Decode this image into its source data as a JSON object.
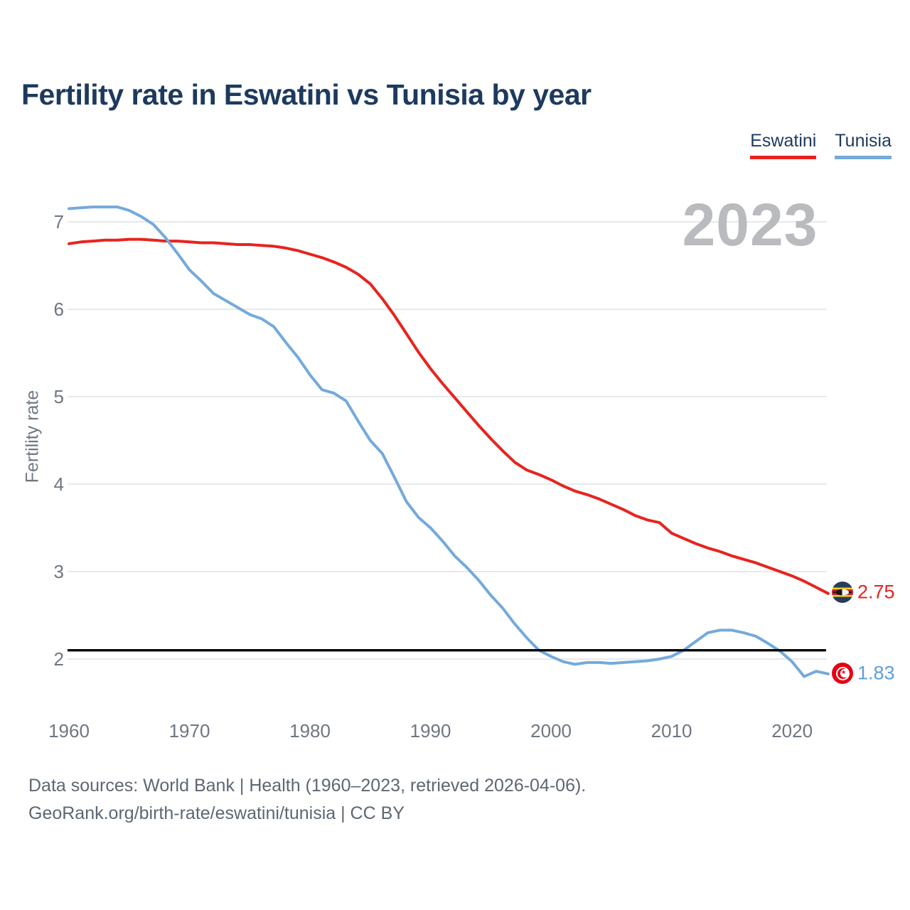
{
  "header": {
    "title": "Fertility rate in Eswatini vs Tunisia by year"
  },
  "legend": {
    "eswatini_label": "Eswatini",
    "tunisia_label": "Tunisia"
  },
  "watermark": "2023",
  "colors": {
    "eswatini": "#e8231e",
    "tunisia": "#74aadb",
    "reference_line": "#000000",
    "gridline": "#e8e9ea",
    "tick_text": "#6e7781",
    "title_text": "#1d3a5e",
    "watermark_text": "#b9bbbe"
  },
  "end_labels": {
    "eswatini_value": "2.75",
    "tunisia_value": "1.83"
  },
  "chart_data": {
    "type": "line",
    "title": "Fertility rate in Eswatini vs Tunisia by year",
    "xlabel": "",
    "ylabel": "Fertility rate",
    "legend_position": "top-right",
    "grid": true,
    "ylim": [
      1.7,
      7.3
    ],
    "xlim": [
      1960,
      2023
    ],
    "yticks": [
      2,
      3,
      4,
      5,
      6,
      7
    ],
    "xticks": [
      1960,
      1970,
      1980,
      1990,
      2000,
      2010,
      2020
    ],
    "reference_line": 2.1,
    "x": [
      1960,
      1961,
      1962,
      1963,
      1964,
      1965,
      1966,
      1967,
      1968,
      1969,
      1970,
      1971,
      1972,
      1973,
      1974,
      1975,
      1976,
      1977,
      1978,
      1979,
      1980,
      1981,
      1982,
      1983,
      1984,
      1985,
      1986,
      1987,
      1988,
      1989,
      1990,
      1991,
      1992,
      1993,
      1994,
      1995,
      1996,
      1997,
      1998,
      1999,
      2000,
      2001,
      2002,
      2003,
      2004,
      2005,
      2006,
      2007,
      2008,
      2009,
      2010,
      2011,
      2012,
      2013,
      2014,
      2015,
      2016,
      2017,
      2018,
      2019,
      2020,
      2021,
      2022,
      2023
    ],
    "series": [
      {
        "name": "Eswatini",
        "color": "#e8231e",
        "end_value": 2.75,
        "values": [
          6.75,
          6.77,
          6.78,
          6.79,
          6.79,
          6.8,
          6.8,
          6.79,
          6.78,
          6.78,
          6.77,
          6.76,
          6.76,
          6.75,
          6.74,
          6.74,
          6.73,
          6.72,
          6.7,
          6.67,
          6.63,
          6.59,
          6.54,
          6.48,
          6.4,
          6.29,
          6.12,
          5.93,
          5.72,
          5.51,
          5.32,
          5.15,
          4.99,
          4.83,
          4.67,
          4.52,
          4.38,
          4.25,
          4.16,
          4.11,
          4.05,
          3.98,
          3.92,
          3.88,
          3.83,
          3.77,
          3.71,
          3.64,
          3.59,
          3.56,
          3.44,
          3.38,
          3.32,
          3.27,
          3.23,
          3.18,
          3.14,
          3.1,
          3.05,
          3.0,
          2.95,
          2.89,
          2.82,
          2.75
        ]
      },
      {
        "name": "Tunisia",
        "color": "#74aadb",
        "end_value": 1.83,
        "values": [
          7.15,
          7.16,
          7.17,
          7.17,
          7.17,
          7.13,
          7.06,
          6.97,
          6.82,
          6.64,
          6.45,
          6.32,
          6.18,
          6.1,
          6.02,
          5.94,
          5.89,
          5.8,
          5.62,
          5.45,
          5.25,
          5.08,
          5.04,
          4.95,
          4.72,
          4.5,
          4.35,
          4.08,
          3.8,
          3.62,
          3.5,
          3.35,
          3.18,
          3.05,
          2.9,
          2.73,
          2.58,
          2.4,
          2.24,
          2.1,
          2.03,
          1.97,
          1.94,
          1.96,
          1.96,
          1.95,
          1.96,
          1.97,
          1.98,
          2.0,
          2.03,
          2.1,
          2.2,
          2.3,
          2.33,
          2.33,
          2.3,
          2.26,
          2.18,
          2.09,
          1.97,
          1.8,
          1.86,
          1.83
        ]
      }
    ]
  },
  "footer": {
    "line1": "Data sources: World Bank | Health (1960–2023, retrieved 2026-04-06).",
    "line2": "GeoRank.org/birth-rate/eswatini/tunisia | CC BY"
  }
}
